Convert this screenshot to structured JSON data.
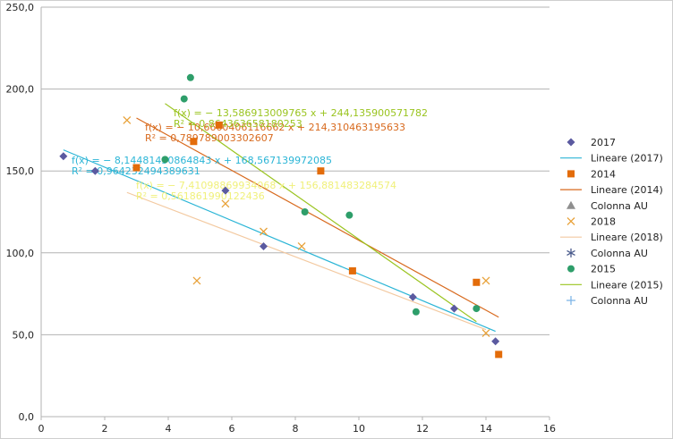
{
  "chart_data": {
    "type": "scatter",
    "title": "",
    "xlabel": "",
    "ylabel": "",
    "xlim": [
      0,
      16
    ],
    "ylim": [
      0,
      250
    ],
    "x_ticks": [
      "0",
      "2",
      "4",
      "6",
      "8",
      "10",
      "12",
      "14",
      "16"
    ],
    "y_ticks": [
      "0,0",
      "50,0",
      "100,0",
      "150,0",
      "200,0",
      "250,0"
    ],
    "grid": "horizontal",
    "legend_position": "right",
    "series": [
      {
        "name": "2017",
        "marker": "diamond",
        "color": "#5b5aa0",
        "points": [
          [
            0.7,
            159
          ],
          [
            1.7,
            150
          ],
          [
            5.8,
            138
          ],
          [
            7.0,
            104
          ],
          [
            11.7,
            73
          ],
          [
            13.0,
            66
          ],
          [
            14.3,
            46
          ]
        ]
      },
      {
        "name": "2014",
        "marker": "square",
        "color": "#e36c0a",
        "points": [
          [
            3.0,
            152
          ],
          [
            4.8,
            168
          ],
          [
            5.6,
            178
          ],
          [
            8.8,
            150
          ],
          [
            9.8,
            89
          ],
          [
            13.7,
            82
          ],
          [
            14.4,
            38
          ]
        ]
      },
      {
        "name": "2018",
        "marker": "x",
        "color": "#e8a23a",
        "points": [
          [
            2.7,
            181
          ],
          [
            4.9,
            83
          ],
          [
            5.8,
            130
          ],
          [
            7.0,
            113
          ],
          [
            8.2,
            104
          ],
          [
            14.0,
            83
          ],
          [
            14.0,
            51
          ]
        ]
      },
      {
        "name": "2015",
        "marker": "circle",
        "color": "#2e9e6a",
        "points": [
          [
            3.9,
            157
          ],
          [
            4.5,
            194
          ],
          [
            4.7,
            207
          ],
          [
            8.3,
            125
          ],
          [
            9.7,
            123
          ],
          [
            11.8,
            64
          ],
          [
            13.7,
            66
          ]
        ]
      }
    ],
    "trendlines": [
      {
        "name": "Lineare (2017)",
        "color": "#2bb5d6",
        "slope": -8.14481430864843,
        "intercept": 168.567139972085,
        "x_range": [
          0.7,
          14.3
        ],
        "equation": "f(x) = − 8,14481430864843 x + 168,567139972085",
        "r2": "R² = 0,964232494389631",
        "text_color": "#2bb5d6"
      },
      {
        "name": "Lineare (2014)",
        "color": "#d86a1e",
        "slope": -10.6660406116662,
        "intercept": 214.310463195633,
        "x_range": [
          3.0,
          14.4
        ],
        "equation": "f(x) = − 10,6660406116662 x + 214,310463195633",
        "r2": "R² = 0,789789003302607",
        "text_color": "#d86a1e"
      },
      {
        "name": "Lineare (2018)",
        "color": "#f3c9a0",
        "slope": -7.41098869934068,
        "intercept": 156.881483284574,
        "x_range": [
          2.7,
          14.0
        ],
        "equation": "f(x) = − 7,41098869934068 x + 156,881483284574",
        "r2": "R² = 0,561861990122436",
        "text_color": "#f0f07a"
      },
      {
        "name": "Lineare (2015)",
        "color": "#9ac41f",
        "slope": -13.586913009765,
        "intercept": 244.135900571782,
        "x_range": [
          3.9,
          13.7
        ],
        "equation": "f(x) = − 13,586913009765 x + 244,135900571782",
        "r2": "R² = 0,864363658180253",
        "text_color": "#9ac41f"
      }
    ],
    "legend": [
      {
        "label": "2017",
        "kind": "diamond",
        "color": "#5b5aa0"
      },
      {
        "label": "Lineare (2017)",
        "kind": "line",
        "color": "#2bb5d6"
      },
      {
        "label": "2014",
        "kind": "square",
        "color": "#e36c0a"
      },
      {
        "label": "Lineare (2014)",
        "kind": "line",
        "color": "#d86a1e"
      },
      {
        "label": "Colonna AU",
        "kind": "triangle",
        "color": "#8f8f8f"
      },
      {
        "label": "2018",
        "kind": "x",
        "color": "#e8a23a"
      },
      {
        "label": "Lineare (2018)",
        "kind": "line",
        "color": "#f3c9a0"
      },
      {
        "label": "Colonna AU",
        "kind": "star",
        "color": "#4a5b8c"
      },
      {
        "label": "2015",
        "kind": "circle",
        "color": "#2e9e6a"
      },
      {
        "label": "Lineare (2015)",
        "kind": "line",
        "color": "#9ac41f"
      },
      {
        "label": "Colonna AU",
        "kind": "plus",
        "color": "#7fb6e8"
      }
    ]
  }
}
